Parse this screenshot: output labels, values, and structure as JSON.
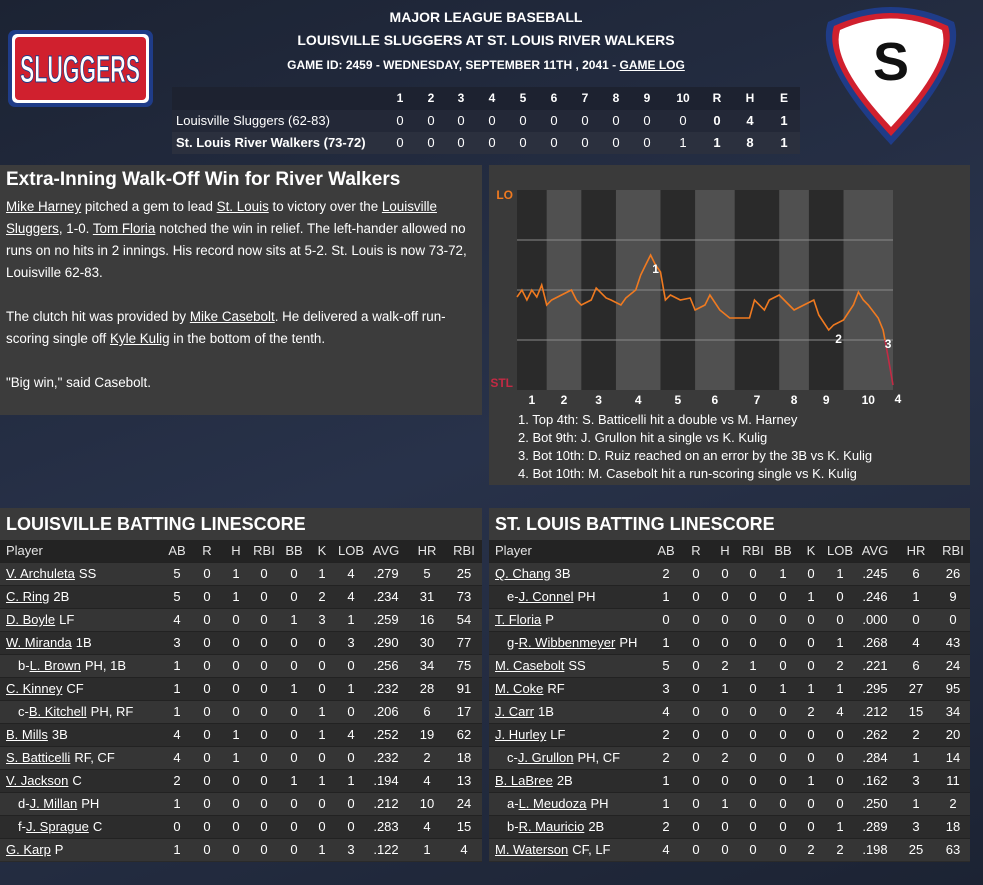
{
  "header": {
    "league": "MAJOR LEAGUE BASEBALL",
    "matchup": "LOUISVILLE SLUGGERS AT ST. LOUIS RIVER WALKERS",
    "game_info": "GAME ID: 2459 - WEDNESDAY, SEPTEMBER 11TH , 2041 - ",
    "game_log_link": "GAME LOG"
  },
  "logos": {
    "away": "SLUGGERS",
    "home": "S"
  },
  "linescore": {
    "columns": [
      1,
      2,
      3,
      4,
      5,
      6,
      7,
      8,
      9,
      10,
      "R",
      "H",
      "E"
    ],
    "rows": [
      {
        "team": "Louisville Sluggers (62-83)",
        "values": [
          0,
          0,
          0,
          0,
          0,
          0,
          0,
          0,
          0,
          0,
          0,
          4,
          1
        ]
      },
      {
        "team": "St. Louis River Walkers (73-72)",
        "values": [
          0,
          0,
          0,
          0,
          0,
          0,
          0,
          0,
          0,
          1,
          1,
          8,
          1
        ]
      }
    ]
  },
  "story": {
    "headline": "Extra-Inning Walk-Off Win for River Walkers",
    "paragraphs": [
      [
        {
          "text": "Mike Harney",
          "link": true
        },
        {
          "text": " pitched a gem to lead ",
          "link": false
        },
        {
          "text": "St. Louis",
          "link": true
        },
        {
          "text": " to victory over the ",
          "link": false
        },
        {
          "text": "Louisville Sluggers",
          "link": true
        },
        {
          "text": ", 1-0. ",
          "link": false
        },
        {
          "text": "Tom Floria",
          "link": true
        },
        {
          "text": " notched the win in relief. The left-hander allowed no runs on no hits in 2 innings. His record now sits at 5-2. St. Louis is now 73-72, Louisville 62-83.",
          "link": false
        }
      ],
      [
        {
          "text": "The clutch hit was provided by ",
          "link": false
        },
        {
          "text": "Mike Casebolt",
          "link": true
        },
        {
          "text": ". He delivered a walk-off run-scoring single off ",
          "link": false
        },
        {
          "text": "Kyle Kulig",
          "link": true
        },
        {
          "text": " in the bottom of the tenth.",
          "link": false
        }
      ],
      [
        {
          "text": "\"Big win,\" said Casebolt.",
          "link": false
        }
      ]
    ]
  },
  "chart_data": {
    "type": "line",
    "x": [
      0,
      1,
      2,
      3,
      4,
      5,
      6,
      7,
      9,
      11,
      12,
      13,
      15,
      16,
      18,
      19,
      21,
      22,
      24,
      25,
      26,
      27,
      28,
      29,
      30,
      31,
      33,
      35,
      36,
      38,
      39,
      41,
      43,
      45,
      47,
      48,
      50,
      51,
      53,
      55,
      56,
      58,
      60,
      61,
      63,
      64,
      66,
      68,
      69,
      70,
      71,
      73,
      74,
      75,
      76
    ],
    "series": [
      {
        "color": "#f07a20",
        "color_low": "#c42a44",
        "values": [
          46.5,
          50,
          45,
          50,
          46.5,
          52.5,
          42.5,
          45,
          47.5,
          50,
          45,
          42.5,
          45,
          51,
          46,
          45,
          42.5,
          46,
          50,
          57.5,
          62.5,
          67.5,
          62.5,
          59,
          45,
          47.5,
          45,
          46,
          40,
          42.5,
          47.5,
          40,
          36,
          36,
          36,
          45,
          40,
          45,
          47.5,
          42.5,
          40,
          42.5,
          45,
          37.5,
          30,
          32.5,
          35,
          42.5,
          49,
          45,
          42.5,
          36,
          30,
          16.5,
          2.5
        ]
      }
    ],
    "xlim": [
      0,
      76
    ],
    "ylim": [
      0,
      100
    ],
    "yticks": [
      {
        "value": 0,
        "label": "STL"
      },
      {
        "value": 25,
        "label": null
      },
      {
        "value": 50,
        "label": null
      },
      {
        "value": 75,
        "label": null
      },
      {
        "value": 100,
        "label": "LO"
      }
    ],
    "grid": true,
    "innings": [
      "1",
      "2",
      "3",
      "4",
      "5",
      "6",
      "7",
      "8",
      "9",
      "10"
    ],
    "inning_starts": [
      0,
      6,
      13,
      20,
      29,
      36,
      44,
      53,
      59,
      66
    ],
    "events": [
      {
        "label": "1",
        "x": 27
      },
      {
        "label": "2",
        "x": 64
      },
      {
        "label": "3",
        "x": 74
      },
      {
        "label": "4",
        "x": 76
      }
    ],
    "notes": [
      "1. Top 4th: S. Batticelli hit a double vs M. Harney",
      "2. Bot 9th: J. Grullon hit a single vs K. Kulig",
      "3. Bot 10th: D. Ruiz reached on an error by the 3B vs K. Kulig",
      "4. Bot 10th: M. Casebolt hit a run-scoring single vs K. Kulig"
    ]
  },
  "batting": [
    {
      "title": "LOUISVILLE BATTING LINESCORE",
      "columns": [
        "Player",
        "AB",
        "R",
        "H",
        "RBI",
        "BB",
        "K",
        "LOB",
        "AVG",
        "HR",
        "RBI"
      ],
      "rows": [
        {
          "name": "V. Archuleta",
          "pos": "SS",
          "stats": [
            5,
            0,
            1,
            0,
            0,
            1,
            4,
            ".279",
            5,
            25
          ]
        },
        {
          "name": "C. Ring",
          "pos": "2B",
          "stats": [
            5,
            0,
            1,
            0,
            0,
            2,
            4,
            ".234",
            31,
            73
          ]
        },
        {
          "name": "D. Boyle",
          "pos": "LF",
          "stats": [
            4,
            0,
            0,
            0,
            1,
            3,
            1,
            ".259",
            16,
            54
          ]
        },
        {
          "name": "W. Miranda",
          "pos": "1B",
          "stats": [
            3,
            0,
            0,
            0,
            0,
            0,
            3,
            ".290",
            30,
            77
          ]
        },
        {
          "prefix": "b-",
          "name": "L. Brown",
          "pos": "PH, 1B",
          "stats": [
            1,
            0,
            0,
            0,
            0,
            0,
            0,
            ".256",
            34,
            75
          ]
        },
        {
          "name": "C. Kinney",
          "pos": "CF",
          "stats": [
            1,
            0,
            0,
            0,
            1,
            0,
            1,
            ".232",
            28,
            91
          ]
        },
        {
          "prefix": "c-",
          "name": "B. Kitchell",
          "pos": "PH, RF",
          "stats": [
            1,
            0,
            0,
            0,
            0,
            1,
            0,
            ".206",
            6,
            17
          ]
        },
        {
          "name": "B. Mills",
          "pos": "3B",
          "stats": [
            4,
            0,
            1,
            0,
            0,
            1,
            4,
            ".252",
            19,
            62
          ]
        },
        {
          "name": "S. Batticelli",
          "pos": "RF, CF",
          "stats": [
            4,
            0,
            1,
            0,
            0,
            0,
            0,
            ".232",
            2,
            18
          ]
        },
        {
          "name": "V. Jackson",
          "pos": "C",
          "stats": [
            2,
            0,
            0,
            0,
            1,
            1,
            1,
            ".194",
            4,
            13
          ]
        },
        {
          "prefix": "d-",
          "name": "J. Millan",
          "pos": "PH",
          "stats": [
            1,
            0,
            0,
            0,
            0,
            0,
            0,
            ".212",
            10,
            24
          ]
        },
        {
          "prefix": "f-",
          "name": "J. Sprague",
          "pos": "C",
          "stats": [
            0,
            0,
            0,
            0,
            0,
            0,
            0,
            ".283",
            4,
            15
          ]
        },
        {
          "name": "G. Karp",
          "pos": "P",
          "stats": [
            1,
            0,
            0,
            0,
            0,
            1,
            3,
            ".122",
            1,
            4
          ]
        }
      ]
    },
    {
      "title": "ST. LOUIS BATTING LINESCORE",
      "columns": [
        "Player",
        "AB",
        "R",
        "H",
        "RBI",
        "BB",
        "K",
        "LOB",
        "AVG",
        "HR",
        "RBI"
      ],
      "rows": [
        {
          "name": "Q. Chang",
          "pos": "3B",
          "stats": [
            2,
            0,
            0,
            0,
            1,
            0,
            1,
            ".245",
            6,
            26
          ]
        },
        {
          "prefix": "e-",
          "name": "J. Connel",
          "pos": "PH",
          "stats": [
            1,
            0,
            0,
            0,
            0,
            1,
            0,
            ".246",
            1,
            9
          ]
        },
        {
          "name": "T. Floria",
          "pos": "P",
          "stats": [
            0,
            0,
            0,
            0,
            0,
            0,
            0,
            ".000",
            0,
            0
          ]
        },
        {
          "prefix": "g-",
          "name": "R. Wibbenmeyer",
          "pos": "PH",
          "stats": [
            1,
            0,
            0,
            0,
            0,
            0,
            1,
            ".268",
            4,
            43
          ]
        },
        {
          "name": "M. Casebolt",
          "pos": "SS",
          "stats": [
            5,
            0,
            2,
            1,
            0,
            0,
            2,
            ".221",
            6,
            24
          ]
        },
        {
          "name": "M. Coke",
          "pos": "RF",
          "stats": [
            3,
            0,
            1,
            0,
            1,
            1,
            1,
            ".295",
            27,
            95
          ]
        },
        {
          "name": "J. Carr",
          "pos": "1B",
          "stats": [
            4,
            0,
            0,
            0,
            0,
            2,
            4,
            ".212",
            15,
            34
          ]
        },
        {
          "name": "J. Hurley",
          "pos": "LF",
          "stats": [
            2,
            0,
            0,
            0,
            0,
            0,
            0,
            ".262",
            2,
            20
          ]
        },
        {
          "prefix": "c-",
          "name": "J. Grullon",
          "pos": "PH, CF",
          "stats": [
            2,
            0,
            2,
            0,
            0,
            0,
            0,
            ".284",
            1,
            14
          ]
        },
        {
          "name": "B. LaBree",
          "pos": "2B",
          "stats": [
            1,
            0,
            0,
            0,
            0,
            1,
            0,
            ".162",
            3,
            11
          ]
        },
        {
          "prefix": "a-",
          "name": "L. Meudoza",
          "pos": "PH",
          "stats": [
            1,
            0,
            1,
            0,
            0,
            0,
            0,
            ".250",
            1,
            2
          ]
        },
        {
          "prefix": "b-",
          "name": "R. Mauricio",
          "pos": "2B",
          "stats": [
            2,
            0,
            0,
            0,
            0,
            0,
            1,
            ".289",
            3,
            18
          ]
        },
        {
          "name": "M. Waterson",
          "pos": "CF, LF",
          "stats": [
            4,
            0,
            0,
            0,
            0,
            2,
            2,
            ".198",
            25,
            63
          ]
        }
      ]
    }
  ]
}
